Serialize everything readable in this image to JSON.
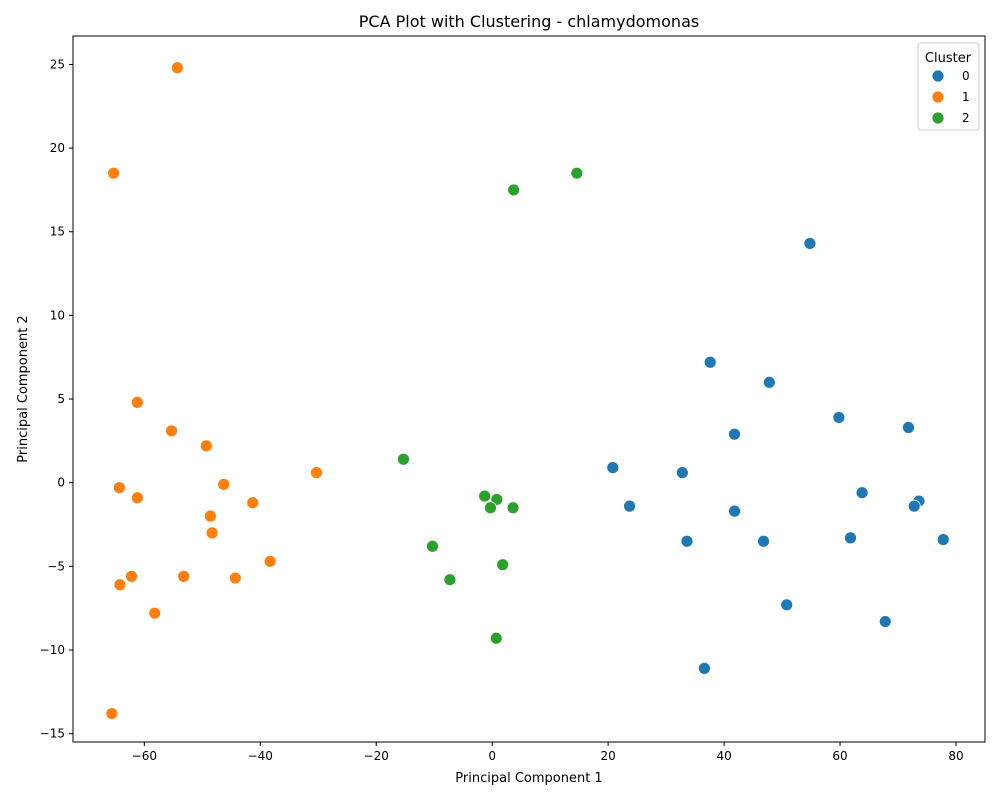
{
  "chart_data": {
    "type": "scatter",
    "title": "PCA Plot with Clustering - chlamydomonas",
    "xlabel": "Principal Component 1",
    "ylabel": "Principal Component 2",
    "xlim": [
      -72.3,
      85
    ],
    "ylim": [
      -15.5,
      26.7
    ],
    "xticks": [
      -60,
      -40,
      -20,
      0,
      20,
      40,
      60,
      80
    ],
    "yticks": [
      -15,
      -10,
      -5,
      0,
      5,
      10,
      15,
      20,
      25
    ],
    "xtick_labels": [
      "−60",
      "−40",
      "−20",
      "0",
      "20",
      "40",
      "60",
      "80"
    ],
    "ytick_labels": [
      "−15",
      "−10",
      "−5",
      "0",
      "5",
      "10",
      "15",
      "20",
      "25"
    ],
    "grid": false,
    "legend": {
      "title": "Cluster",
      "position": "top-right"
    },
    "series": [
      {
        "name": "0",
        "color": "#1f77b4",
        "points": [
          [
            54.8,
            14.3
          ],
          [
            37.6,
            7.2
          ],
          [
            47.8,
            6.0
          ],
          [
            59.8,
            3.9
          ],
          [
            71.8,
            3.3
          ],
          [
            41.8,
            2.9
          ],
          [
            20.8,
            0.9
          ],
          [
            32.8,
            0.6
          ],
          [
            63.8,
            -0.6
          ],
          [
            73.6,
            -1.1
          ],
          [
            72.8,
            -1.4
          ],
          [
            23.7,
            -1.4
          ],
          [
            41.8,
            -1.7
          ],
          [
            33.6,
            -3.5
          ],
          [
            46.8,
            -3.5
          ],
          [
            61.8,
            -3.3
          ],
          [
            77.8,
            -3.4
          ],
          [
            50.8,
            -7.3
          ],
          [
            67.8,
            -8.3
          ],
          [
            36.6,
            -11.1
          ]
        ]
      },
      {
        "name": "1",
        "color": "#ff7f0e",
        "points": [
          [
            -54.3,
            24.8
          ],
          [
            -65.3,
            18.5
          ],
          [
            -61.2,
            4.8
          ],
          [
            -55.3,
            3.1
          ],
          [
            -49.3,
            2.2
          ],
          [
            -30.3,
            0.6
          ],
          [
            -64.3,
            -0.3
          ],
          [
            -46.3,
            -0.1
          ],
          [
            -61.2,
            -0.9
          ],
          [
            -41.3,
            -1.2
          ],
          [
            -48.6,
            -2.0
          ],
          [
            -48.3,
            -3.0
          ],
          [
            -38.3,
            -4.7
          ],
          [
            -62.2,
            -5.6
          ],
          [
            -53.2,
            -5.6
          ],
          [
            -44.3,
            -5.7
          ],
          [
            -64.2,
            -6.1
          ],
          [
            -58.2,
            -7.8
          ],
          [
            -65.6,
            -13.8
          ]
        ]
      },
      {
        "name": "2",
        "color": "#2ca02c",
        "points": [
          [
            14.6,
            18.5
          ],
          [
            3.7,
            17.5
          ],
          [
            -15.3,
            1.4
          ],
          [
            -1.3,
            -0.8
          ],
          [
            0.8,
            -1.0
          ],
          [
            -0.3,
            -1.5
          ],
          [
            3.6,
            -1.5
          ],
          [
            -10.3,
            -3.8
          ],
          [
            1.8,
            -4.9
          ],
          [
            -7.3,
            -5.8
          ],
          [
            0.7,
            -9.3
          ]
        ]
      }
    ]
  }
}
